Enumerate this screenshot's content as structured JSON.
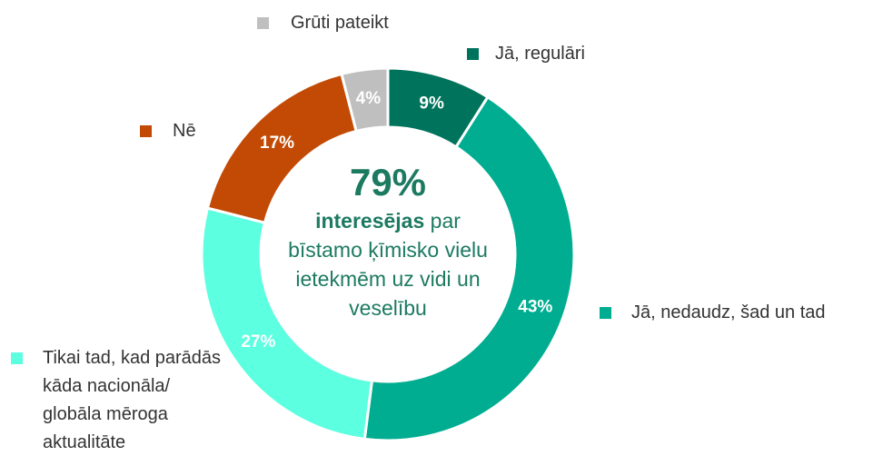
{
  "chart_data": {
    "type": "donut",
    "categories": [
      "Jā, regulāri",
      "Jā, nedaudz, šad un tad",
      "Tikai tad, kad parādās kāda nacionāla/ globāla mēroga aktualitāte",
      "Nē",
      "Grūti pateikt"
    ],
    "values": [
      9,
      43,
      27,
      17,
      4
    ],
    "value_labels": [
      "9%",
      "43%",
      "27%",
      "17%",
      "4%"
    ],
    "colors": [
      "#00735c",
      "#00ad90",
      "#5cffe0",
      "#c24a05",
      "#bfbfbf"
    ],
    "center_value": "79%",
    "center_bold": "interesējas",
    "center_text": "par bīstamo ķīmisko vielu ietekmēm uz vidi un veselību"
  }
}
